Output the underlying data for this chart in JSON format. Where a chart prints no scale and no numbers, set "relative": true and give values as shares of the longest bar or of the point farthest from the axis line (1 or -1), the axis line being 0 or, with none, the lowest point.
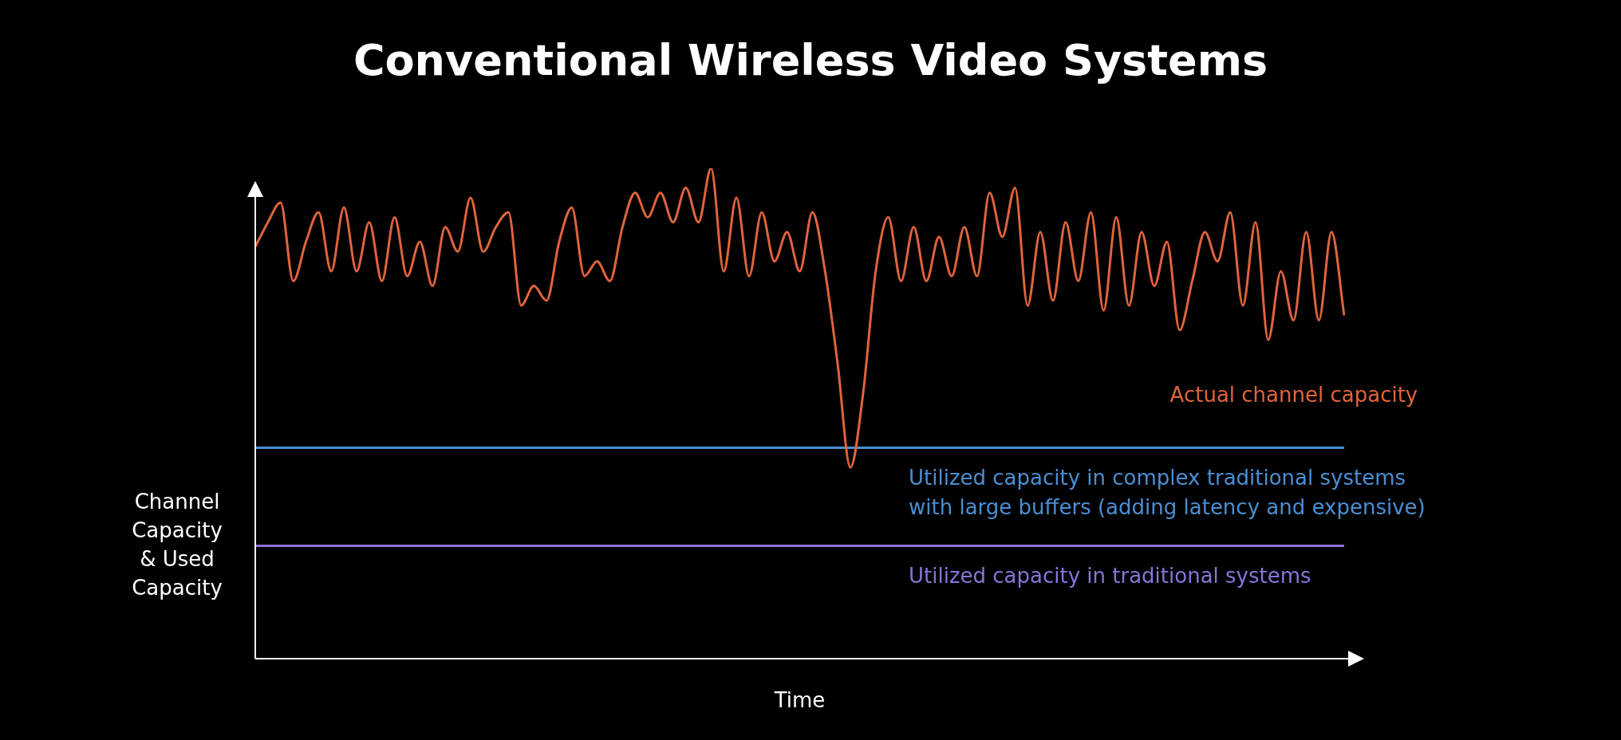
{
  "chart_data": {
    "type": "line",
    "title": "Conventional Wireless Video Systems",
    "xlabel": "Time",
    "ylabel": "Channel Capacity & Used Capacity",
    "relative": true,
    "legend": false,
    "marker": "none",
    "line_style": "solid",
    "categories": [
      null,
      null,
      null,
      null,
      null,
      null,
      null,
      null,
      null,
      null,
      null,
      null,
      null,
      null,
      null,
      null,
      null,
      null,
      null,
      null,
      null,
      null,
      null,
      null,
      null,
      null,
      null,
      null,
      null,
      null,
      null,
      null,
      null,
      null,
      null,
      null,
      null,
      null,
      null,
      null,
      null,
      null,
      null,
      null,
      null,
      null,
      null,
      null,
      null,
      null,
      null,
      null,
      null,
      null,
      null,
      null,
      null,
      null,
      null,
      null,
      null,
      null,
      null,
      null,
      null,
      null,
      null,
      null,
      null,
      null,
      null,
      null,
      null,
      null,
      null,
      null,
      null,
      null,
      null,
      null,
      null,
      null,
      null,
      null,
      null,
      null,
      null
    ],
    "series": [
      {
        "name": "Actual channel capacity",
        "color": "#e0643c",
        "values": [
          0.84,
          0.89,
          0.93,
          0.77,
          0.85,
          0.91,
          0.79,
          0.92,
          0.79,
          0.89,
          0.77,
          0.9,
          0.78,
          0.85,
          0.76,
          0.88,
          0.83,
          0.94,
          0.83,
          0.88,
          0.91,
          0.72,
          0.76,
          0.73,
          0.85,
          0.92,
          0.78,
          0.81,
          0.77,
          0.88,
          0.95,
          0.9,
          0.95,
          0.89,
          0.96,
          0.89,
          1,
          0.79,
          0.94,
          0.78,
          0.91,
          0.81,
          0.87,
          0.79,
          0.91,
          0.79,
          0.6,
          0.39,
          0.54,
          0.79,
          0.9,
          0.77,
          0.88,
          0.77,
          0.86,
          0.78,
          0.88,
          0.78,
          0.95,
          0.86,
          0.96,
          0.72,
          0.87,
          0.73,
          0.89,
          0.77,
          0.91,
          0.71,
          0.9,
          0.72,
          0.87,
          0.76,
          0.85,
          0.67,
          0.77,
          0.87,
          0.81,
          0.91,
          0.72,
          0.89,
          0.65,
          0.79,
          0.69,
          0.87,
          0.69,
          0.87,
          0.7
        ]
      },
      {
        "name": "Utilized capacity in complex traditional systems with large buffers (adding latency and expensive)",
        "color": "#4a8fd4",
        "values": [
          0.43,
          0.43,
          0.43,
          0.43,
          0.43,
          0.43,
          0.43,
          0.43,
          0.43,
          0.43,
          0.43,
          0.43,
          0.43,
          0.43,
          0.43,
          0.43,
          0.43,
          0.43,
          0.43,
          0.43,
          0.43,
          0.43,
          0.43,
          0.43,
          0.43,
          0.43,
          0.43,
          0.43,
          0.43,
          0.43,
          0.43,
          0.43,
          0.43,
          0.43,
          0.43,
          0.43,
          0.43,
          0.43,
          0.43,
          0.43,
          0.43,
          0.43,
          0.43,
          0.43,
          0.43,
          0.43,
          0.43,
          0.43,
          0.43,
          0.43,
          0.43,
          0.43,
          0.43,
          0.43,
          0.43,
          0.43,
          0.43,
          0.43,
          0.43,
          0.43,
          0.43,
          0.43,
          0.43,
          0.43,
          0.43,
          0.43,
          0.43,
          0.43,
          0.43,
          0.43,
          0.43,
          0.43,
          0.43,
          0.43,
          0.43,
          0.43,
          0.43,
          0.43,
          0.43,
          0.43,
          0.43,
          0.43,
          0.43,
          0.43,
          0.43,
          0.43,
          0.43
        ]
      },
      {
        "name": "Utilized capacity in traditional systems",
        "color": "#8a73d8",
        "values": [
          0.23,
          0.23,
          0.23,
          0.23,
          0.23,
          0.23,
          0.23,
          0.23,
          0.23,
          0.23,
          0.23,
          0.23,
          0.23,
          0.23,
          0.23,
          0.23,
          0.23,
          0.23,
          0.23,
          0.23,
          0.23,
          0.23,
          0.23,
          0.23,
          0.23,
          0.23,
          0.23,
          0.23,
          0.23,
          0.23,
          0.23,
          0.23,
          0.23,
          0.23,
          0.23,
          0.23,
          0.23,
          0.23,
          0.23,
          0.23,
          0.23,
          0.23,
          0.23,
          0.23,
          0.23,
          0.23,
          0.23,
          0.23,
          0.23,
          0.23,
          0.23,
          0.23,
          0.23,
          0.23,
          0.23,
          0.23,
          0.23,
          0.23,
          0.23,
          0.23,
          0.23,
          0.23,
          0.23,
          0.23,
          0.23,
          0.23,
          0.23,
          0.23,
          0.23,
          0.23,
          0.23,
          0.23,
          0.23,
          0.23,
          0.23,
          0.23,
          0.23,
          0.23,
          0.23,
          0.23,
          0.23,
          0.23,
          0.23,
          0.23,
          0.23,
          0.23,
          0.23
        ]
      }
    ]
  }
}
